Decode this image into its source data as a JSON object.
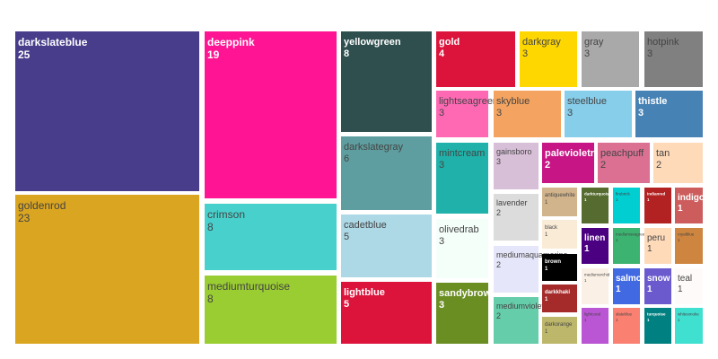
{
  "chart_data": {
    "type": "treemap",
    "items": [
      {
        "label": "darkslateblue",
        "value": 25,
        "color": "#483D8B",
        "text_color": "#ffffff"
      },
      {
        "label": "goldenrod",
        "value": 23,
        "color": "#DAA520",
        "text_color": "#444444"
      },
      {
        "label": "deeppink",
        "value": 19,
        "color": "#FF1493",
        "text_color": "#ffffff"
      },
      {
        "label": "crimson",
        "value": 8,
        "color": "#48D1CC",
        "text_color": "#444444"
      },
      {
        "label": "mediumturquoise",
        "value": 8,
        "color": "#9ACD32",
        "text_color": "#444444"
      },
      {
        "label": "yellowgreen",
        "value": 8,
        "color": "#2F4F4F",
        "text_color": "#ffffff"
      },
      {
        "label": "darkslategray",
        "value": 6,
        "color": "#5F9EA0",
        "text_color": "#444444"
      },
      {
        "label": "cadetblue",
        "value": 5,
        "color": "#ADD8E6",
        "text_color": "#444444"
      },
      {
        "label": "lightblue",
        "value": 5,
        "color": "#DC143C",
        "text_color": "#ffffff"
      },
      {
        "label": "gold",
        "value": 4,
        "color": "#DC143C",
        "text_color": "#ffffff"
      },
      {
        "label": "darkgray",
        "value": 3,
        "color": "#FFD700",
        "text_color": "#444444"
      },
      {
        "label": "gray",
        "value": 3,
        "color": "#A9A9A9",
        "text_color": "#444444"
      },
      {
        "label": "hotpink",
        "value": 3,
        "color": "#808080",
        "text_color": "#444444"
      },
      {
        "label": "lightseagreen",
        "value": 3,
        "color": "#FF69B4",
        "text_color": "#444444"
      },
      {
        "label": "skyblue",
        "value": 3,
        "color": "#F4A460",
        "text_color": "#444444"
      },
      {
        "label": "steelblue",
        "value": 3,
        "color": "#87CEEB",
        "text_color": "#444444"
      },
      {
        "label": "thistle",
        "value": 3,
        "color": "#4682B4",
        "text_color": "#ffffff"
      },
      {
        "label": "mintcream",
        "value": 3,
        "color": "#20B2AA",
        "text_color": "#444444"
      },
      {
        "label": "gainsboro",
        "value": 3,
        "color": "#D8BFD8",
        "text_color": "#444444"
      },
      {
        "label": "palevioletred",
        "value": 2,
        "color": "#C71585",
        "text_color": "#ffffff"
      },
      {
        "label": "peachpuff",
        "value": 2,
        "color": "#DB7093",
        "text_color": "#444444"
      },
      {
        "label": "tan",
        "value": 2,
        "color": "#FFDAB9",
        "text_color": "#444444"
      },
      {
        "label": "olivedrab",
        "value": 3,
        "color": "#F5FFFA",
        "text_color": "#444444"
      },
      {
        "label": "lavender",
        "value": 2,
        "color": "#DCDCDC",
        "text_color": "#444444"
      },
      {
        "label": "sandybrown",
        "value": 3,
        "color": "#6B8E23",
        "text_color": "#ffffff"
      },
      {
        "label": "mediumaquamarine",
        "value": 2,
        "color": "#E6E6FA",
        "text_color": "#444444"
      },
      {
        "label": "mediumvioletred",
        "value": 2,
        "color": "#66CDAA",
        "text_color": "#444444"
      },
      {
        "label": "antiquewhite",
        "value": 1,
        "color": "#D2B48C",
        "text_color": "#444444"
      },
      {
        "label": "black",
        "value": 1,
        "color": "#FAEBD7",
        "text_color": "#444444"
      },
      {
        "label": "brown",
        "value": 1,
        "color": "#000000",
        "text_color": "#ffffff"
      },
      {
        "label": "darkkhaki",
        "value": 1,
        "color": "#A52A2A",
        "text_color": "#ffffff"
      },
      {
        "label": "darkorange",
        "value": 1,
        "color": "#BDB76B",
        "text_color": "#444444"
      },
      {
        "label": "darkturquoise",
        "value": 1,
        "color": "#556B2F",
        "text_color": "#ffffff"
      },
      {
        "label": "firebrick",
        "value": 1,
        "color": "#00CED1",
        "text_color": "#444444"
      },
      {
        "label": "indianred",
        "value": 1,
        "color": "#B22222",
        "text_color": "#ffffff"
      },
      {
        "label": "indigo",
        "value": 1,
        "color": "#CD5C5C",
        "text_color": "#ffffff"
      },
      {
        "label": "linen",
        "value": 1,
        "color": "#4B0082",
        "text_color": "#ffffff"
      },
      {
        "label": "mediumseagreen",
        "value": 1,
        "color": "#3CB371",
        "text_color": "#444444"
      },
      {
        "label": "peru",
        "value": 1,
        "color": "#FFDAB9",
        "text_color": "#444444"
      },
      {
        "label": "royalblue",
        "value": 1,
        "color": "#CD853F",
        "text_color": "#444444"
      },
      {
        "label": "mediumorchid",
        "value": 1,
        "color": "#FAF0E6",
        "text_color": "#444444"
      },
      {
        "label": "salmon",
        "value": 1,
        "color": "#4169E1",
        "text_color": "#ffffff"
      },
      {
        "label": "snow",
        "value": 1,
        "color": "#6A5ACD",
        "text_color": "#ffffff"
      },
      {
        "label": "teal",
        "value": 1,
        "color": "#FFFAFA",
        "text_color": "#444444"
      },
      {
        "label": "lightcoral",
        "value": 1,
        "color": "#BA55D3",
        "text_color": "#444444"
      },
      {
        "label": "slateblue",
        "value": 1,
        "color": "#FA8072",
        "text_color": "#444444"
      },
      {
        "label": "turquoise",
        "value": 1,
        "color": "#008080",
        "text_color": "#ffffff"
      },
      {
        "label": "whitesmoke",
        "value": 1,
        "color": "#40E0D0",
        "text_color": "#444444"
      }
    ]
  }
}
